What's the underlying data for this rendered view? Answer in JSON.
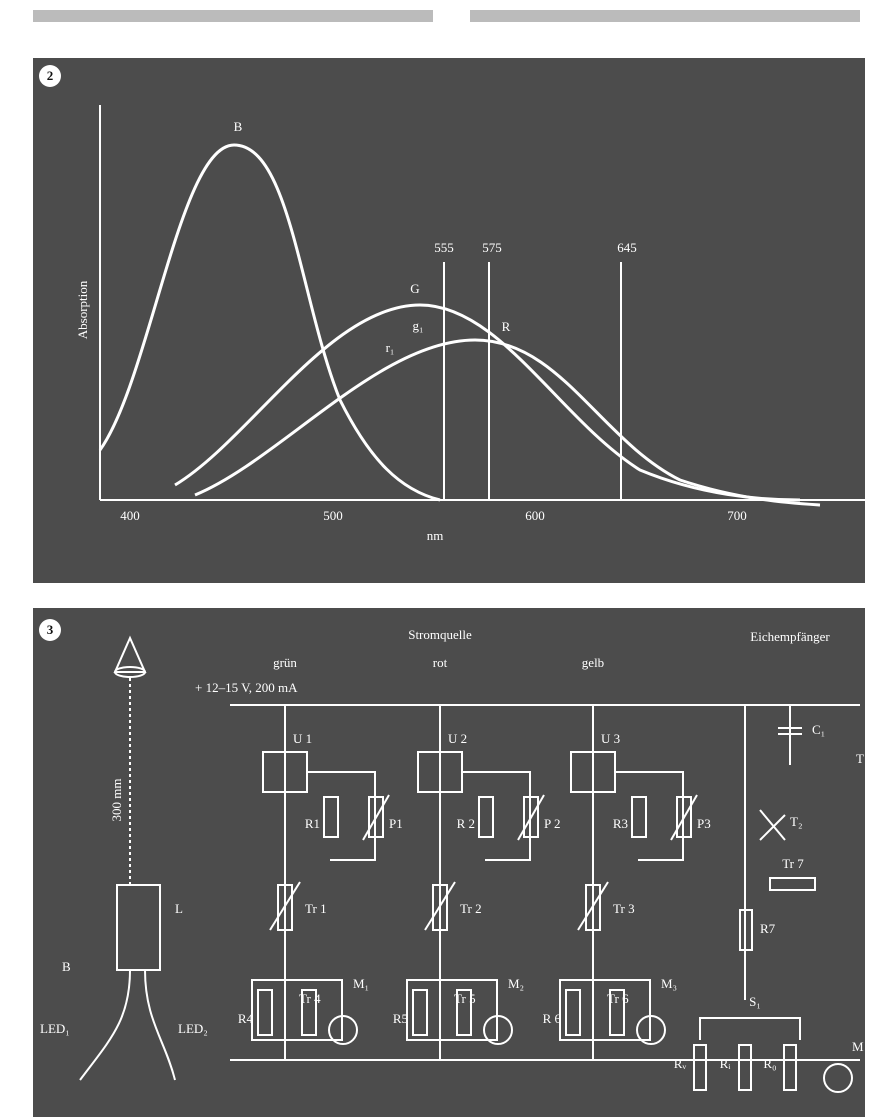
{
  "figure_2": {
    "number": "2",
    "axis_label": "Absorption",
    "unit": "nm",
    "x_ticks": [
      "400",
      "500",
      "600",
      "700"
    ],
    "curve_labels": [
      "B",
      "G",
      "R"
    ],
    "wavelengths": [
      "555",
      "575",
      "645"
    ],
    "markers": [
      "g₁",
      "r₁"
    ]
  },
  "figure_3": {
    "number": "3",
    "source": "Stromquelle",
    "receiver": "Eichempfänger",
    "supply": "+ 12–15 V, 200 mA",
    "length": "300 mm",
    "columns": [
      {
        "color": "grün",
        "regulator": "U 1",
        "resistor": "R1",
        "potentiometer": "P1",
        "trimmer": "Tr 1",
        "meter": "M₁",
        "load": "R4",
        "trimmer_2": "Tr 4"
      },
      {
        "color": "rot",
        "regulator": "U 2",
        "resistor": "R 2",
        "potentiometer": "P 2",
        "trimmer": "Tr 2",
        "meter": "M₂",
        "load": "R5",
        "trimmer_2": "Tr 5"
      },
      {
        "color": "gelb",
        "regulator": "U 3",
        "resistor": "R3",
        "potentiometer": "P3",
        "trimmer": "Tr 3",
        "meter": "M₃",
        "load": "R 6",
        "trimmer_2": "Tr 6"
      }
    ],
    "light_guide": "L",
    "bundle": "B",
    "leds": [
      "LED₁",
      "LED₂"
    ],
    "receiver_parts": {
      "capacitor": "C₁",
      "transistor_1": "T",
      "transistor_2": "T₂",
      "trimmer": "Tr 7",
      "resistor": "R7",
      "switch": "S₁",
      "series_resistor": "Rᵥ",
      "internal_resistor": "Rᵢ",
      "shunt": "R₀",
      "meter": "M"
    }
  }
}
